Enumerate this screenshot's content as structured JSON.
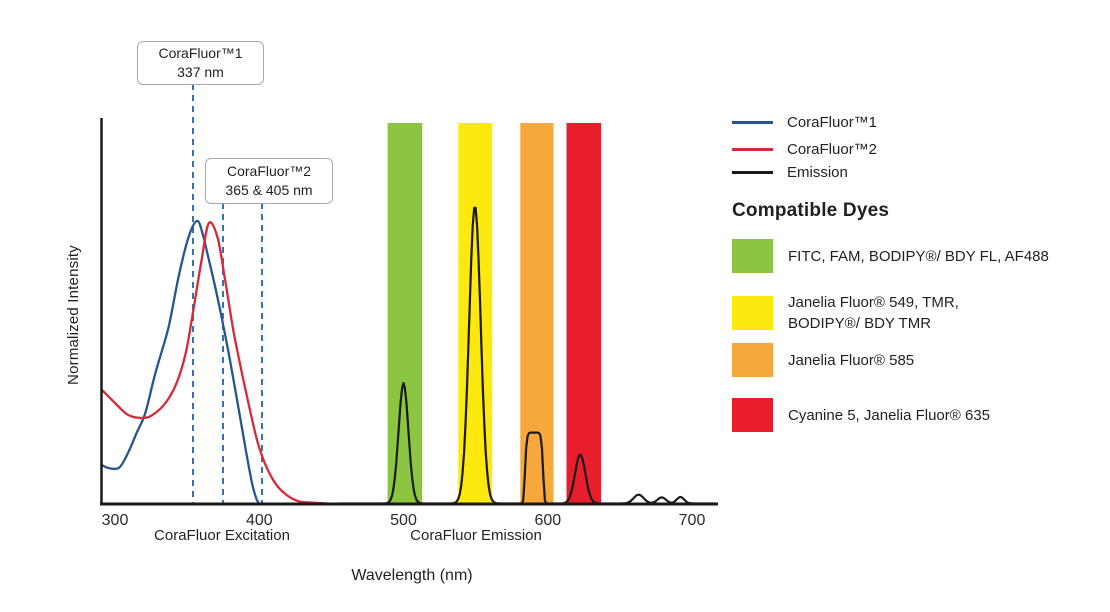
{
  "figure": {
    "y_axis_label": "Normalized Intensity",
    "x_axis_label": "Wavelength (nm)",
    "x_section_labels": {
      "excitation": "CoraFluor Excitation",
      "emission": "CoraFluor Emission"
    }
  },
  "annotations": {
    "box1": {
      "line1": "CoraFluor™1",
      "line2": "337 nm"
    },
    "box2": {
      "line1": "CoraFluor™2",
      "line2": "365 & 405 nm"
    }
  },
  "legend": {
    "items": [
      {
        "label": "CoraFluor™1",
        "color": "#27558f"
      },
      {
        "label": "CoraFluor™2",
        "color": "#d8293a"
      },
      {
        "label": "Emission",
        "color": "#1a1a1a"
      }
    ]
  },
  "compatible_dyes": {
    "heading": "Compatible Dyes",
    "items": [
      {
        "color": "#8cc540",
        "label": "FITC, FAM, BODIPY®/ BDY FL, AF488"
      },
      {
        "color": "#fde90d",
        "label": "Janelia Fluor® 549, TMR,\nBODIPY®/ BDY TMR"
      },
      {
        "color": "#f6a83c",
        "label": "Janelia Fluor® 585"
      },
      {
        "color": "#e81e2c",
        "label": "Cyanine 5, Janelia Fluor® 635"
      }
    ]
  },
  "chart_data": {
    "type": "line",
    "title": "CoraFluor excitation and emission spectra with compatible dye filter bands",
    "xlabel": "Wavelength (nm)",
    "ylabel": "Normalized Intensity",
    "xlim": [
      291,
      718
    ],
    "ylim": [
      0,
      1
    ],
    "x_ticks": [
      300,
      400,
      500,
      600,
      700
    ],
    "grid": false,
    "legend_position": "right",
    "series": [
      {
        "name": "CoraFluor™1",
        "color": "#27558f",
        "points": [
          [
            291,
            0.1
          ],
          [
            296,
            0.092
          ],
          [
            303,
            0.094
          ],
          [
            309,
            0.132
          ],
          [
            315,
            0.184
          ],
          [
            321,
            0.236
          ],
          [
            328,
            0.34
          ],
          [
            337,
            0.458
          ],
          [
            344,
            0.59
          ],
          [
            351,
            0.695
          ],
          [
            357,
            0.737
          ],
          [
            361,
            0.7
          ],
          [
            364,
            0.653
          ],
          [
            371,
            0.538
          ],
          [
            378,
            0.408
          ],
          [
            385,
            0.262
          ],
          [
            391,
            0.132
          ],
          [
            395,
            0.053
          ],
          [
            398,
            0.012
          ],
          [
            400,
            0.0
          ]
        ]
      },
      {
        "name": "CoraFluor™2",
        "color": "#d8293a",
        "points": [
          [
            291,
            0.296
          ],
          [
            300,
            0.262
          ],
          [
            309,
            0.231
          ],
          [
            319,
            0.223
          ],
          [
            326,
            0.231
          ],
          [
            335,
            0.262
          ],
          [
            343,
            0.317
          ],
          [
            349,
            0.392
          ],
          [
            354,
            0.497
          ],
          [
            360,
            0.635
          ],
          [
            365,
            0.731
          ],
          [
            371,
            0.695
          ],
          [
            376,
            0.591
          ],
          [
            382,
            0.452
          ],
          [
            388,
            0.34
          ],
          [
            394,
            0.236
          ],
          [
            399,
            0.158
          ],
          [
            405,
            0.095
          ],
          [
            412,
            0.048
          ],
          [
            419,
            0.022
          ],
          [
            427,
            0.006
          ],
          [
            437,
            0.002
          ],
          [
            448,
            0.0
          ]
        ]
      },
      {
        "name": "Emission",
        "color": "#1a1a1a",
        "baseline_range_nm": [
          455,
          716
        ],
        "peaks": [
          {
            "nm": 500,
            "height": 0.314,
            "width": 3.4,
            "shape": "gaussian"
          },
          {
            "nm": 549.5,
            "height": 0.777,
            "width": 4.0,
            "shape": "gaussian"
          },
          {
            "nm": 590.5,
            "height": 0.185,
            "width": 6.5,
            "shape": "flattop"
          },
          {
            "nm": 622.5,
            "height": 0.128,
            "width": 3.6,
            "shape": "gaussian"
          },
          {
            "nm": 663,
            "height": 0.023,
            "width": 3.5,
            "shape": "gaussian"
          },
          {
            "nm": 679,
            "height": 0.016,
            "width": 3.0,
            "shape": "gaussian"
          },
          {
            "nm": 692,
            "height": 0.017,
            "width": 2.6,
            "shape": "gaussian"
          }
        ]
      }
    ],
    "bands": [
      {
        "nm_range": [
          489,
          513
        ],
        "color": "#8cc540",
        "dye": "FITC, FAM, BODIPY®/ BDY FL, AF488"
      },
      {
        "nm_range": [
          538,
          561.5
        ],
        "color": "#fde90d",
        "dye": "Janelia Fluor® 549, TMR, BODIPY®/ BDY TMR"
      },
      {
        "nm_range": [
          581,
          604
        ],
        "color": "#f6a83c",
        "dye": "Janelia Fluor® 585"
      },
      {
        "nm_range": [
          613,
          637
        ],
        "color": "#e81e2c",
        "dye": "Cyanine 5, Janelia Fluor® 635"
      }
    ],
    "vlines": [
      {
        "nm": 354.1,
        "annotation": "box1",
        "labeled_value": "337 nm"
      },
      {
        "nm": 374.9,
        "annotation": "box2",
        "labeled_value": "365 nm"
      },
      {
        "nm": 401.9,
        "annotation": "box2",
        "labeled_value": "405 nm"
      }
    ]
  }
}
